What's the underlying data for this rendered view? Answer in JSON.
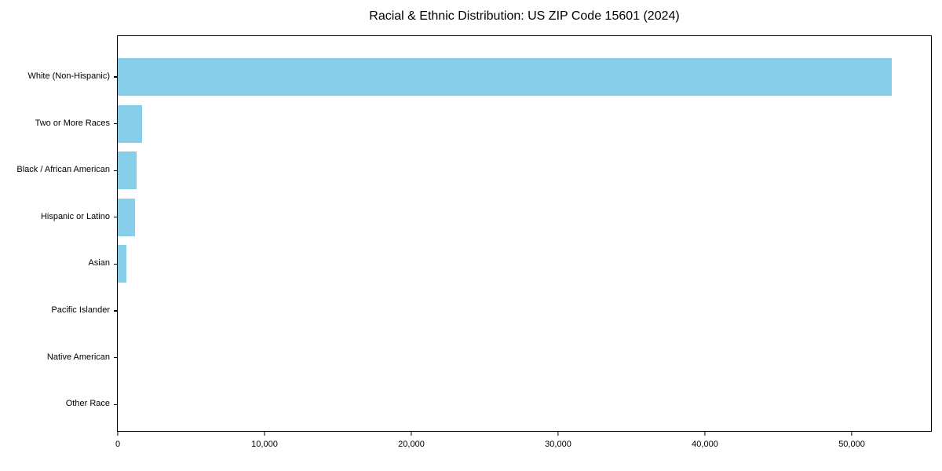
{
  "chart_data": {
    "type": "bar",
    "orientation": "horizontal",
    "title": "Racial & Ethnic Distribution: US ZIP Code 15601 (2024)",
    "categories": [
      "White (Non-Hispanic)",
      "Two or More Races",
      "Black / African American",
      "Hispanic or Latino",
      "Asian",
      "Pacific Islander",
      "Native American",
      "Other Race"
    ],
    "values": [
      52700,
      1650,
      1300,
      1150,
      600,
      0,
      0,
      0
    ],
    "xlabel": "",
    "ylabel": "",
    "xlim": [
      0,
      55400
    ],
    "x_ticks": [
      0,
      10000,
      20000,
      30000,
      40000,
      50000
    ],
    "x_tick_labels": [
      "0",
      "10,000",
      "20,000",
      "30,000",
      "40,000",
      "50,000"
    ],
    "bar_color": "#87ceeb",
    "grid": false,
    "legend": null,
    "frame": "full-box"
  },
  "colors": {
    "background": "#ffffff",
    "spine": "#000000",
    "text": "#000000"
  }
}
